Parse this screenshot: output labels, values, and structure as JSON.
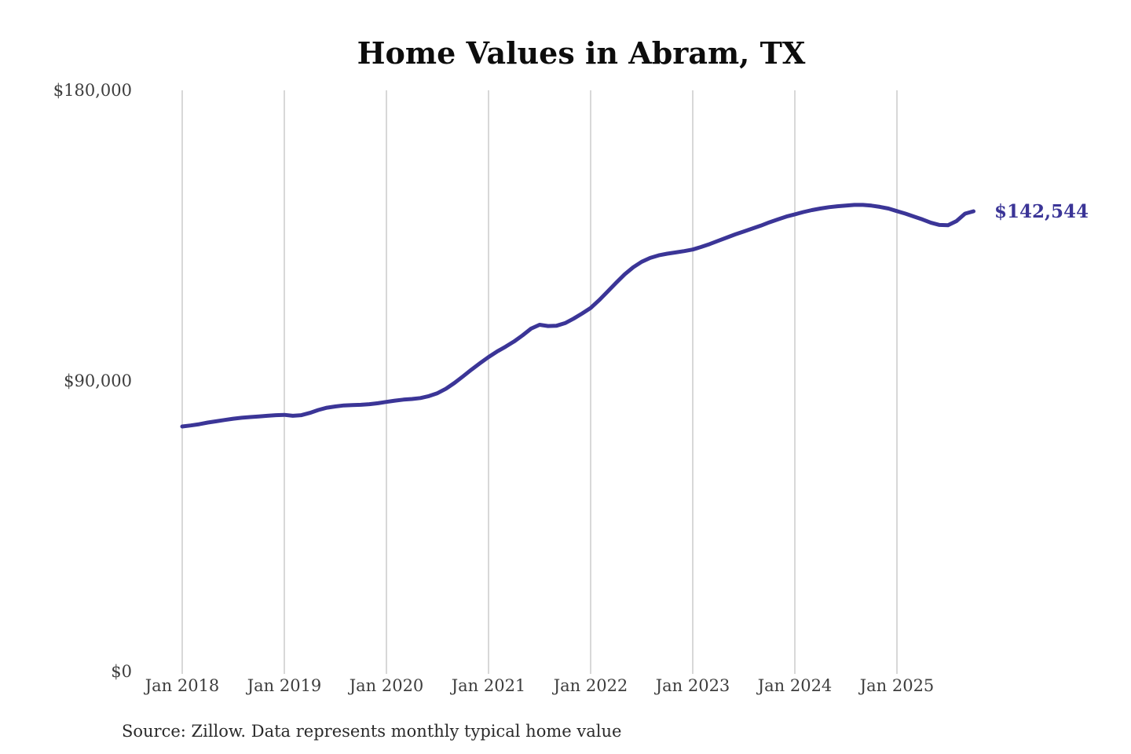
{
  "page": {
    "title": "Home Values in Abram, TX",
    "source_note": "Source: Zillow. Data represents monthly typical home value",
    "latest_value_label": "$142,544"
  },
  "colors": {
    "line": "#3b3597",
    "grid": "#cccccc",
    "tick_text": "#3d3d3d",
    "title_text": "#0d0d0d",
    "source_text": "#2a2a2a",
    "annotation_text": "#3b3597",
    "background": "#ffffff"
  },
  "chart_data": {
    "type": "line",
    "title": "Home Values in Abram, TX",
    "series_name": "Monthly typical home value",
    "unit": "USD",
    "xlabel": "",
    "ylabel": "",
    "ylim": [
      0,
      180000
    ],
    "grid": "vertical-only",
    "legend": "none",
    "x": [
      "2018-01",
      "2018-02",
      "2018-03",
      "2018-04",
      "2018-05",
      "2018-06",
      "2018-07",
      "2018-08",
      "2018-09",
      "2018-10",
      "2018-11",
      "2018-12",
      "2019-01",
      "2019-02",
      "2019-03",
      "2019-04",
      "2019-05",
      "2019-06",
      "2019-07",
      "2019-08",
      "2019-09",
      "2019-10",
      "2019-11",
      "2019-12",
      "2020-01",
      "2020-02",
      "2020-03",
      "2020-04",
      "2020-05",
      "2020-06",
      "2020-07",
      "2020-08",
      "2020-09",
      "2020-10",
      "2020-11",
      "2020-12",
      "2021-01",
      "2021-02",
      "2021-03",
      "2021-04",
      "2021-05",
      "2021-06",
      "2021-07",
      "2021-08",
      "2021-09",
      "2021-10",
      "2021-11",
      "2021-12",
      "2022-01",
      "2022-02",
      "2022-03",
      "2022-04",
      "2022-05",
      "2022-06",
      "2022-07",
      "2022-08",
      "2022-09",
      "2022-10",
      "2022-11",
      "2022-12",
      "2023-01",
      "2023-02",
      "2023-03",
      "2023-04",
      "2023-05",
      "2023-06",
      "2023-07",
      "2023-08",
      "2023-09",
      "2023-10",
      "2023-11",
      "2023-12",
      "2024-01",
      "2024-02",
      "2024-03",
      "2024-04",
      "2024-05",
      "2024-06",
      "2024-07",
      "2024-08",
      "2024-09",
      "2024-10",
      "2024-11",
      "2024-12",
      "2025-01",
      "2025-02",
      "2025-03",
      "2025-04",
      "2025-05",
      "2025-06",
      "2025-07",
      "2025-08",
      "2025-09",
      "2025-10"
    ],
    "values": [
      75900,
      76200,
      76600,
      77100,
      77500,
      77900,
      78300,
      78600,
      78800,
      79000,
      79200,
      79400,
      79500,
      79200,
      79400,
      80100,
      81000,
      81700,
      82100,
      82400,
      82500,
      82600,
      82800,
      83100,
      83500,
      83900,
      84200,
      84400,
      84700,
      85300,
      86200,
      87600,
      89400,
      91400,
      93500,
      95500,
      97400,
      99100,
      100600,
      102200,
      104100,
      106200,
      107400,
      107000,
      107100,
      107900,
      109300,
      110900,
      112600,
      115000,
      117700,
      120400,
      123000,
      125200,
      126900,
      128100,
      128900,
      129400,
      129800,
      130200,
      130700,
      131500,
      132400,
      133400,
      134400,
      135400,
      136300,
      137200,
      138100,
      139100,
      140000,
      140900,
      141600,
      142300,
      142900,
      143400,
      143800,
      144100,
      144300,
      144500,
      144500,
      144300,
      143900,
      143400,
      142600,
      141800,
      140900,
      140000,
      139000,
      138300,
      138200,
      139500,
      141800,
      142544
    ],
    "latest_value": 142544,
    "y_ticks": [
      {
        "value": 0,
        "label": "$0"
      },
      {
        "value": 90000,
        "label": "$90,000"
      },
      {
        "value": 180000,
        "label": "$180,000"
      }
    ],
    "x_ticks": [
      {
        "month_index": 0,
        "label": "Jan 2018"
      },
      {
        "month_index": 12,
        "label": "Jan 2019"
      },
      {
        "month_index": 24,
        "label": "Jan 2020"
      },
      {
        "month_index": 36,
        "label": "Jan 2021"
      },
      {
        "month_index": 48,
        "label": "Jan 2022"
      },
      {
        "month_index": 60,
        "label": "Jan 2023"
      },
      {
        "month_index": 72,
        "label": "Jan 2024"
      },
      {
        "month_index": 84,
        "label": "Jan 2025"
      }
    ],
    "annotation": {
      "text": "$142,544"
    },
    "source": "Source: Zillow. Data represents monthly typical home value"
  }
}
